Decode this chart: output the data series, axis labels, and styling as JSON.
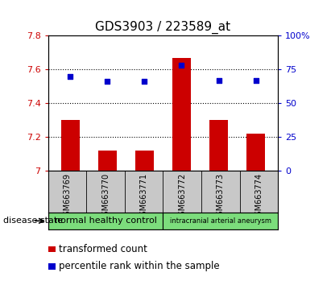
{
  "title": "GDS3903 / 223589_at",
  "samples": [
    "GSM663769",
    "GSM663770",
    "GSM663771",
    "GSM663772",
    "GSM663773",
    "GSM663774"
  ],
  "bar_values": [
    7.3,
    7.12,
    7.12,
    7.67,
    7.3,
    7.22
  ],
  "bar_baseline": 7.0,
  "blue_dot_values_pct": [
    70,
    66,
    66,
    78,
    67,
    67
  ],
  "bar_color": "#cc0000",
  "dot_color": "#0000cc",
  "ylim_left": [
    7.0,
    7.8
  ],
  "ylim_right": [
    0,
    100
  ],
  "yticks_left": [
    7.0,
    7.2,
    7.4,
    7.6,
    7.8
  ],
  "ytick_labels_left": [
    "7",
    "7.2",
    "7.4",
    "7.6",
    "7.8"
  ],
  "yticks_right": [
    0,
    25,
    50,
    75,
    100
  ],
  "ytick_labels_right": [
    "0",
    "25",
    "50",
    "75",
    "100%"
  ],
  "groups": [
    {
      "label": "normal healthy control",
      "n_samples": 3,
      "color": "#7cdd7c"
    },
    {
      "label": "intracranial arterial aneurysm",
      "n_samples": 3,
      "color": "#7cdd7c"
    }
  ],
  "disease_state_label": "disease state",
  "legend_bar_label": "transformed count",
  "legend_dot_label": "percentile rank within the sample",
  "plot_bg_color": "#ffffff",
  "tick_area_color": "#c8c8c8",
  "bar_width": 0.5,
  "title_fontsize": 11,
  "tick_fontsize": 8,
  "legend_fontsize": 8.5
}
